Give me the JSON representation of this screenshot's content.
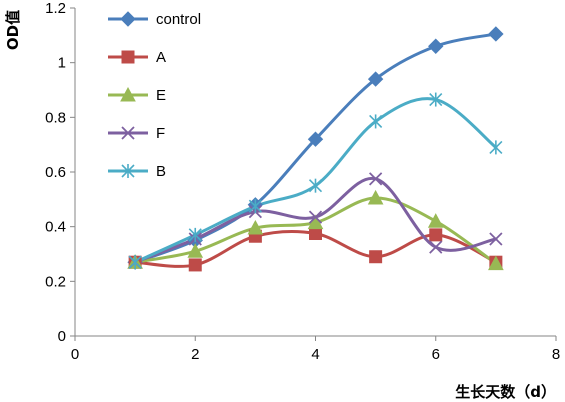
{
  "chart_data": {
    "type": "line",
    "xlabel": "生长天数（d）",
    "ylabel": "OD值",
    "xlim": [
      0,
      8
    ],
    "ylim": [
      0,
      1.2
    ],
    "xticks": [
      0,
      2,
      4,
      6,
      8
    ],
    "yticks": [
      0,
      0.2,
      0.4,
      0.6,
      0.8,
      1,
      1.2
    ],
    "grid": false,
    "legend_position": "top-left",
    "x": [
      1,
      2,
      3,
      4,
      5,
      6,
      7
    ],
    "series": [
      {
        "name": "control",
        "color": "#4A7EBB",
        "marker": "diamond",
        "values": [
          0.27,
          0.35,
          0.48,
          0.72,
          0.94,
          1.06,
          1.105
        ]
      },
      {
        "name": "A",
        "color": "#BE4B48",
        "marker": "square",
        "values": [
          0.27,
          0.26,
          0.365,
          0.375,
          0.29,
          0.37,
          0.27
        ]
      },
      {
        "name": "E",
        "color": "#98B954",
        "marker": "triangle",
        "values": [
          0.27,
          0.31,
          0.395,
          0.415,
          0.505,
          0.42,
          0.265
        ]
      },
      {
        "name": "F",
        "color": "#7D60A0",
        "marker": "x",
        "values": [
          0.27,
          0.355,
          0.455,
          0.435,
          0.575,
          0.325,
          0.355
        ]
      },
      {
        "name": "B",
        "color": "#4BACC6",
        "marker": "asterisk",
        "values": [
          0.27,
          0.37,
          0.475,
          0.55,
          0.785,
          0.865,
          0.69
        ]
      }
    ]
  }
}
